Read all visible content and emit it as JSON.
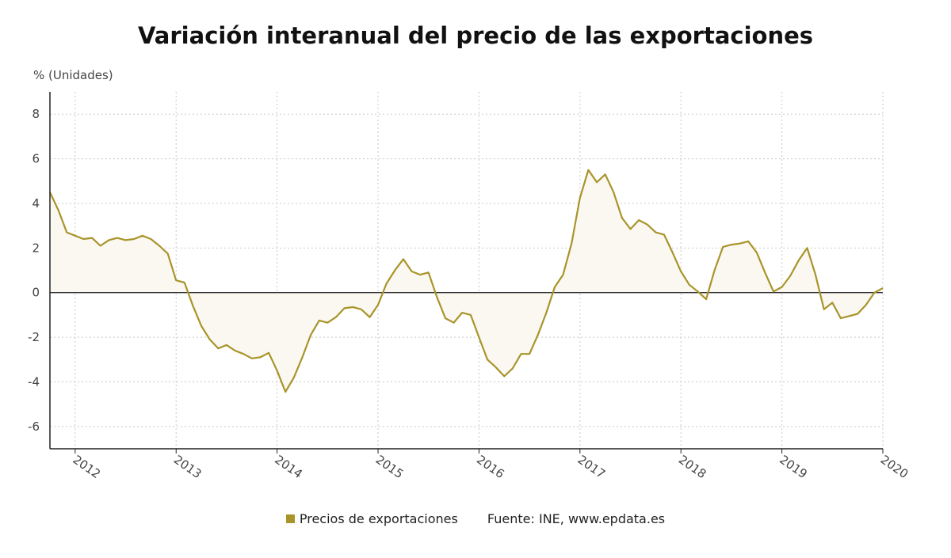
{
  "title": "Variación interanual del precio de las exportaciones",
  "legend_label": "Precios de exportaciones",
  "source": "Fuente: INE, www.epdata.es",
  "colors": {
    "line": "#a8942a",
    "fill": "#fbf8f2",
    "grid": "#c8c8c8",
    "zero": "#333333",
    "axis": "#222222"
  },
  "chart_data": {
    "type": "area",
    "ylabel": "% (Unidades)",
    "ylim": [
      -7,
      9
    ],
    "yticks": [
      -6,
      -4,
      -2,
      0,
      2,
      4,
      6,
      8
    ],
    "xlim": [
      2011.75,
      2020.0
    ],
    "xticks": [
      2012,
      2013,
      2014,
      2015,
      2016,
      2017,
      2018,
      2019,
      2020
    ],
    "xtick_labels": [
      "2012",
      "2013",
      "2014",
      "2015",
      "2016",
      "2017",
      "2018",
      "2019",
      "2020"
    ],
    "grid": true,
    "legend_position": "bottom",
    "series": [
      {
        "name": "Precios de exportaciones",
        "x": [
          2011.75,
          2011.833,
          2011.917,
          2012.0,
          2012.083,
          2012.167,
          2012.25,
          2012.333,
          2012.417,
          2012.5,
          2012.583,
          2012.667,
          2012.75,
          2012.833,
          2012.917,
          2013.0,
          2013.083,
          2013.167,
          2013.25,
          2013.333,
          2013.417,
          2013.5,
          2013.583,
          2013.667,
          2013.75,
          2013.833,
          2013.917,
          2014.0,
          2014.083,
          2014.167,
          2014.25,
          2014.333,
          2014.417,
          2014.5,
          2014.583,
          2014.667,
          2014.75,
          2014.833,
          2014.917,
          2015.0,
          2015.083,
          2015.167,
          2015.25,
          2015.333,
          2015.417,
          2015.5,
          2015.583,
          2015.667,
          2015.75,
          2015.833,
          2015.917,
          2016.0,
          2016.083,
          2016.167,
          2016.25,
          2016.333,
          2016.417,
          2016.5,
          2016.583,
          2016.667,
          2016.75,
          2016.833,
          2016.917,
          2017.0,
          2017.083,
          2017.167,
          2017.25,
          2017.333,
          2017.417,
          2017.5,
          2017.583,
          2017.667,
          2017.75,
          2017.833,
          2017.917,
          2018.0,
          2018.083,
          2018.167,
          2018.25,
          2018.333,
          2018.417,
          2018.5,
          2018.583,
          2018.667,
          2018.75,
          2018.833,
          2018.917,
          2019.0,
          2019.083,
          2019.167,
          2019.25,
          2019.333,
          2019.417,
          2019.5,
          2019.583,
          2019.667,
          2019.75,
          2019.833,
          2019.917,
          2020.0
        ],
        "y": [
          4.5,
          3.7,
          2.7,
          2.55,
          2.4,
          2.45,
          2.1,
          2.35,
          2.45,
          2.35,
          2.4,
          2.55,
          2.4,
          2.1,
          1.75,
          0.55,
          0.45,
          -0.6,
          -1.5,
          -2.1,
          -2.5,
          -2.35,
          -2.6,
          -2.75,
          -2.95,
          -2.9,
          -2.7,
          -3.5,
          -4.45,
          -3.8,
          -2.9,
          -1.9,
          -1.25,
          -1.35,
          -1.1,
          -0.7,
          -0.65,
          -0.75,
          -1.1,
          -0.55,
          0.4,
          1.0,
          1.5,
          0.95,
          0.8,
          0.9,
          -0.2,
          -1.15,
          -1.35,
          -0.9,
          -1.0,
          -2.0,
          -3.0,
          -3.35,
          -3.75,
          -3.4,
          -2.75,
          -2.75,
          -1.9,
          -0.9,
          0.25,
          0.8,
          2.2,
          4.25,
          5.5,
          4.95,
          5.3,
          4.5,
          3.35,
          2.85,
          3.25,
          3.05,
          2.7,
          2.6,
          1.8,
          0.95,
          0.35,
          0.05,
          -0.3,
          1.0,
          2.05,
          2.15,
          2.2,
          2.3,
          1.8,
          0.9,
          0.05,
          0.25,
          0.75,
          1.45,
          2.0,
          0.8,
          -0.75,
          -0.45,
          -1.15,
          -1.05,
          -0.95,
          -0.55,
          0.0,
          0.2
        ]
      }
    ]
  }
}
